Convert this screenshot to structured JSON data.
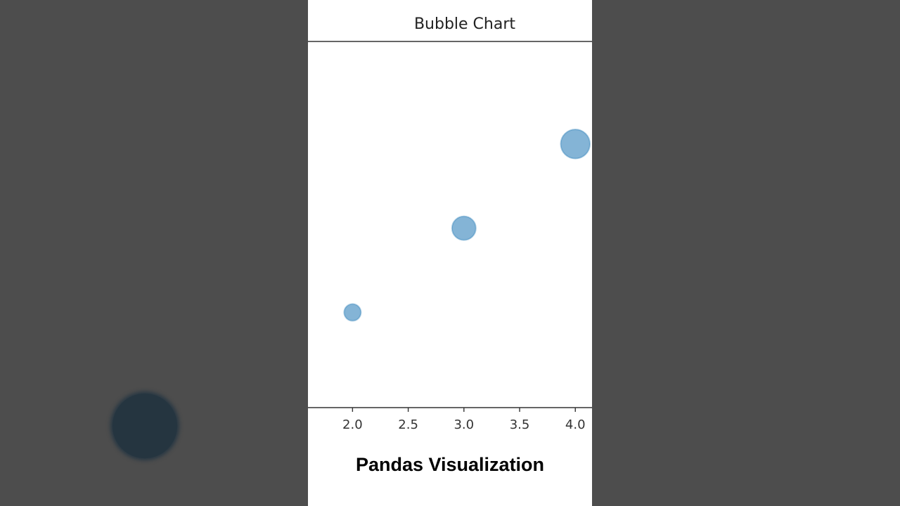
{
  "caption": "Pandas Visualization",
  "overlay": {
    "icon": "play-circle-icon"
  },
  "chart_data": {
    "type": "scatter",
    "subtype": "bubble",
    "title": "Bubble Chart",
    "xlabel": "",
    "ylabel": "",
    "xlim": [
      1.6,
      4.15
    ],
    "ylim": [
      0,
      5
    ],
    "xticks": [
      "2.0",
      "2.5",
      "3.0",
      "3.5",
      "4.0"
    ],
    "xtick_values": [
      2.0,
      2.5,
      3.0,
      3.5,
      4.0
    ],
    "grid": false,
    "legend": "none",
    "color": "#1f77b4",
    "alpha": 0.55,
    "points": [
      {
        "x": 2,
        "y": 1.3,
        "size": 100
      },
      {
        "x": 3,
        "y": 2.45,
        "size": 200
      },
      {
        "x": 4,
        "y": 3.6,
        "size": 300
      }
    ]
  }
}
